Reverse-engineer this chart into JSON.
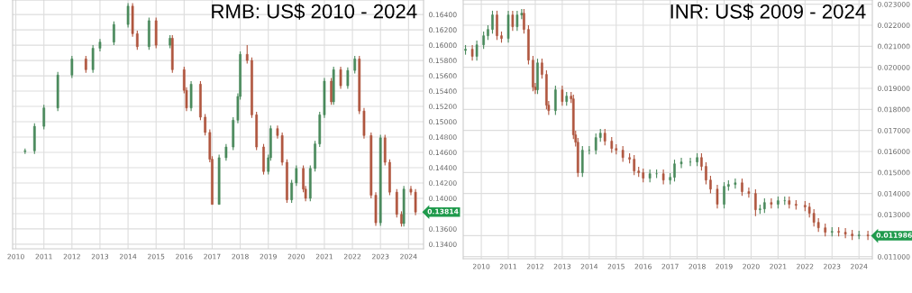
{
  "chart_data": [
    {
      "type": "candlestick",
      "title": "RMB: US$ 2010 - 2024",
      "x": [
        "2010-05",
        "2010-09",
        "2011-01",
        "2011-07",
        "2012-01",
        "2012-07",
        "2012-10",
        "2013-01",
        "2013-07",
        "2014-01",
        "2014-03",
        "2014-05",
        "2014-10",
        "2015-01",
        "2015-07",
        "2015-08",
        "2016-01",
        "2016-02",
        "2016-04",
        "2016-08",
        "2016-10",
        "2016-12",
        "2017-01",
        "2017-04",
        "2017-07",
        "2017-10",
        "2017-12",
        "2018-01",
        "2018-04",
        "2018-06",
        "2018-08",
        "2018-11",
        "2019-01",
        "2019-02",
        "2019-05",
        "2019-07",
        "2019-09",
        "2019-11",
        "2020-01",
        "2020-04",
        "2020-05",
        "2020-07",
        "2020-09",
        "2020-11",
        "2021-01",
        "2021-04",
        "2021-05",
        "2021-08",
        "2021-11",
        "2022-02",
        "2022-04",
        "2022-06",
        "2022-09",
        "2022-11",
        "2023-01",
        "2023-03",
        "2023-05",
        "2023-08",
        "2023-10",
        "2023-11",
        "2024-02",
        "2024-04"
      ],
      "ohlc": [
        [
          0.1461,
          0.1465,
          0.1458,
          0.1462
        ],
        [
          0.1462,
          0.1498,
          0.1458,
          0.1494
        ],
        [
          0.1494,
          0.1522,
          0.149,
          0.1518
        ],
        [
          0.1518,
          0.1565,
          0.1514,
          0.1561
        ],
        [
          0.1561,
          0.1586,
          0.1557,
          0.1582
        ],
        [
          0.1582,
          0.1586,
          0.1564,
          0.1568
        ],
        [
          0.1568,
          0.16,
          0.1564,
          0.1596
        ],
        [
          0.1596,
          0.1608,
          0.1592,
          0.1604
        ],
        [
          0.1604,
          0.1631,
          0.16,
          0.1627
        ],
        [
          0.1627,
          0.1655,
          0.1623,
          0.1651
        ],
        [
          0.1651,
          0.1655,
          0.1611,
          0.1615
        ],
        [
          0.1615,
          0.1619,
          0.1594,
          0.1598
        ],
        [
          0.1598,
          0.1636,
          0.1594,
          0.1632
        ],
        [
          0.1632,
          0.1636,
          0.1596,
          0.16
        ],
        [
          0.16,
          0.1613,
          0.1596,
          0.1609
        ],
        [
          0.1609,
          0.1613,
          0.1564,
          0.1568
        ],
        [
          0.1568,
          0.1572,
          0.1537,
          0.1541
        ],
        [
          0.1541,
          0.1545,
          0.1514,
          0.1518
        ],
        [
          0.1518,
          0.1553,
          0.1514,
          0.1549
        ],
        [
          0.1549,
          0.1553,
          0.1502,
          0.1506
        ],
        [
          0.1506,
          0.151,
          0.1482,
          0.1486
        ],
        [
          0.1486,
          0.149,
          0.1447,
          0.1451
        ],
        [
          0.1451,
          0.1455,
          0.1392,
          0.1392
        ],
        [
          0.1392,
          0.1457,
          0.1392,
          0.1453
        ],
        [
          0.1453,
          0.1471,
          0.1449,
          0.1467
        ],
        [
          0.1467,
          0.1506,
          0.1463,
          0.1502
        ],
        [
          0.1502,
          0.1537,
          0.1498,
          0.1533
        ],
        [
          0.1533,
          0.1592,
          0.1529,
          0.1588
        ],
        [
          0.1588,
          0.16,
          0.1576,
          0.158
        ],
        [
          0.158,
          0.1584,
          0.1505,
          0.1509
        ],
        [
          0.1509,
          0.1513,
          0.1463,
          0.1467
        ],
        [
          0.1467,
          0.1471,
          0.1431,
          0.1435
        ],
        [
          0.1435,
          0.1457,
          0.1431,
          0.1453
        ],
        [
          0.1453,
          0.1495,
          0.1449,
          0.1491
        ],
        [
          0.1491,
          0.1495,
          0.1478,
          0.1482
        ],
        [
          0.1482,
          0.1486,
          0.1443,
          0.1447
        ],
        [
          0.1447,
          0.1451,
          0.1394,
          0.1398
        ],
        [
          0.1398,
          0.1424,
          0.1394,
          0.142
        ],
        [
          0.142,
          0.1443,
          0.1416,
          0.1439
        ],
        [
          0.1439,
          0.1443,
          0.1408,
          0.1412
        ],
        [
          0.1412,
          0.1416,
          0.1396,
          0.14
        ],
        [
          0.14,
          0.1443,
          0.1396,
          0.1439
        ],
        [
          0.1439,
          0.1475,
          0.1435,
          0.1471
        ],
        [
          0.1471,
          0.1513,
          0.1467,
          0.1509
        ],
        [
          0.1509,
          0.1557,
          0.1505,
          0.1553
        ],
        [
          0.1553,
          0.1557,
          0.1522,
          0.1526
        ],
        [
          0.1526,
          0.1572,
          0.1522,
          0.1568
        ],
        [
          0.1568,
          0.1572,
          0.1543,
          0.1547
        ],
        [
          0.1547,
          0.1571,
          0.1543,
          0.1567
        ],
        [
          0.1567,
          0.1586,
          0.1563,
          0.1582
        ],
        [
          0.1582,
          0.1586,
          0.151,
          0.1514
        ],
        [
          0.1514,
          0.1518,
          0.1478,
          0.1482
        ],
        [
          0.1482,
          0.1486,
          0.14,
          0.1404
        ],
        [
          0.1404,
          0.1408,
          0.1364,
          0.1368
        ],
        [
          0.1368,
          0.1483,
          0.1364,
          0.1479
        ],
        [
          0.1479,
          0.1483,
          0.1443,
          0.1447
        ],
        [
          0.1447,
          0.1451,
          0.1404,
          0.1408
        ],
        [
          0.1408,
          0.1412,
          0.1375,
          0.1379
        ],
        [
          0.1379,
          0.1383,
          0.1363,
          0.1367
        ],
        [
          0.1367,
          0.1416,
          0.1363,
          0.1412
        ],
        [
          0.1412,
          0.1416,
          0.1404,
          0.1408
        ],
        [
          0.1408,
          0.1412,
          0.1378,
          0.1382
        ]
      ],
      "colors": [
        "#4a8a5c",
        "#4a8a5c",
        "#4a8a5c",
        "#4a8a5c",
        "#4a8a5c",
        "#b0563f",
        "#4a8a5c",
        "#4a8a5c",
        "#4a8a5c",
        "#4a8a5c",
        "#b0563f",
        "#b0563f",
        "#4a8a5c",
        "#b0563f",
        "#4a8a5c",
        "#b0563f",
        "#b0563f",
        "#b0563f",
        "#4a8a5c",
        "#b0563f",
        "#b0563f",
        "#b0563f",
        "#b0563f",
        "#4a8a5c",
        "#4a8a5c",
        "#4a8a5c",
        "#4a8a5c",
        "#4a8a5c",
        "#b0563f",
        "#b0563f",
        "#b0563f",
        "#b0563f",
        "#4a8a5c",
        "#4a8a5c",
        "#b0563f",
        "#b0563f",
        "#b0563f",
        "#4a8a5c",
        "#4a8a5c",
        "#b0563f",
        "#b0563f",
        "#4a8a5c",
        "#4a8a5c",
        "#4a8a5c",
        "#4a8a5c",
        "#b0563f",
        "#4a8a5c",
        "#b0563f",
        "#4a8a5c",
        "#4a8a5c",
        "#b0563f",
        "#b0563f",
        "#b0563f",
        "#b0563f",
        "#4a8a5c",
        "#b0563f",
        "#b0563f",
        "#b0563f",
        "#b0563f",
        "#4a8a5c",
        "#b0563f",
        "#b0563f"
      ],
      "xlim": [
        "2009-11-20",
        "2024-07-15"
      ],
      "xticks": [
        {
          "value": "2010-01-01",
          "label": "2010"
        },
        {
          "value": "2011-01-01",
          "label": "2011"
        },
        {
          "value": "2012-01-01",
          "label": "2012"
        },
        {
          "value": "2013-01-01",
          "label": "2013"
        },
        {
          "value": "2014-01-01",
          "label": "2014"
        },
        {
          "value": "2015-01-01",
          "label": "2015"
        },
        {
          "value": "2016-01-01",
          "label": "2016"
        },
        {
          "value": "2017-01-01",
          "label": "2017"
        },
        {
          "value": "2018-01-01",
          "label": "2018"
        },
        {
          "value": "2019-01-01",
          "label": "2019"
        },
        {
          "value": "2020-01-01",
          "label": "2020"
        },
        {
          "value": "2021-01-01",
          "label": "2021"
        },
        {
          "value": "2022-01-01",
          "label": "2022"
        },
        {
          "value": "2023-01-01",
          "label": "2023"
        },
        {
          "value": "2024-01-01",
          "label": "2024"
        }
      ],
      "ylim": [
        0.1334,
        0.1659
      ],
      "yticks": [
        {
          "value": 0.134,
          "label": "0.13400"
        },
        {
          "value": 0.136,
          "label": "0.13600"
        },
        {
          "value": 0.138,
          "label": null
        },
        {
          "value": 0.14,
          "label": "0.14000"
        },
        {
          "value": 0.142,
          "label": "0.14200"
        },
        {
          "value": 0.144,
          "label": "0.14400"
        },
        {
          "value": 0.146,
          "label": "0.14600"
        },
        {
          "value": 0.148,
          "label": "0.14800"
        },
        {
          "value": 0.15,
          "label": "0.15000"
        },
        {
          "value": 0.152,
          "label": "0.15200"
        },
        {
          "value": 0.154,
          "label": "0.15400"
        },
        {
          "value": 0.156,
          "label": "0.15600"
        },
        {
          "value": 0.158,
          "label": "0.15800"
        },
        {
          "value": 0.16,
          "label": "0.16000"
        },
        {
          "value": 0.162,
          "label": "0.16200"
        },
        {
          "value": 0.164,
          "label": "0.16400"
        }
      ],
      "annotations": [
        "0.13814"
      ],
      "grid": true
    },
    {
      "type": "candlestick",
      "title": "INR: US$ 2009 - 2024",
      "x": [
        "2009-06",
        "2009-09",
        "2009-11",
        "2010-02",
        "2010-04",
        "2010-06",
        "2010-08",
        "2010-10",
        "2011-01",
        "2011-03",
        "2011-05",
        "2011-07",
        "2011-08",
        "2011-10",
        "2011-12",
        "2012-01",
        "2012-02",
        "2012-04",
        "2012-06",
        "2012-07",
        "2012-10",
        "2013-01",
        "2013-03",
        "2013-05",
        "2013-06",
        "2013-07",
        "2013-08",
        "2013-10",
        "2014-01",
        "2014-04",
        "2014-06",
        "2014-08",
        "2014-11",
        "2015-01",
        "2015-04",
        "2015-07",
        "2015-09",
        "2015-11",
        "2016-01",
        "2016-04",
        "2016-07",
        "2016-10",
        "2017-01",
        "2017-03",
        "2017-06",
        "2017-10",
        "2018-01",
        "2018-03",
        "2018-05",
        "2018-07",
        "2018-10",
        "2019-01",
        "2019-03",
        "2019-06",
        "2019-09",
        "2019-12",
        "2020-03",
        "2020-05",
        "2020-07",
        "2020-10",
        "2021-01",
        "2021-04",
        "2021-06",
        "2021-09",
        "2022-01",
        "2022-03",
        "2022-05",
        "2022-07",
        "2022-10",
        "2023-01",
        "2023-04",
        "2023-07",
        "2023-10",
        "2024-01",
        "2024-05"
      ],
      "ohlc": [
        [
          0.0208,
          0.02106,
          0.0206,
          0.02086
        ],
        [
          0.02086,
          0.02106,
          0.02032,
          0.02052
        ],
        [
          0.02052,
          0.02127,
          0.02032,
          0.02107
        ],
        [
          0.02107,
          0.0217,
          0.02087,
          0.0215
        ],
        [
          0.0215,
          0.022,
          0.0213,
          0.0218
        ],
        [
          0.0218,
          0.02269,
          0.0216,
          0.02249
        ],
        [
          0.02249,
          0.02269,
          0.0213,
          0.0215
        ],
        [
          0.0215,
          0.0217,
          0.02117,
          0.02137
        ],
        [
          0.02137,
          0.02269,
          0.02117,
          0.02249
        ],
        [
          0.02249,
          0.02269,
          0.02173,
          0.02193
        ],
        [
          0.02193,
          0.02269,
          0.02173,
          0.02249
        ],
        [
          0.02249,
          0.02277,
          0.02229,
          0.02257
        ],
        [
          0.02257,
          0.02277,
          0.0216,
          0.0218
        ],
        [
          0.0218,
          0.022,
          0.02014,
          0.02034
        ],
        [
          0.02034,
          0.02054,
          0.01886,
          0.01906
        ],
        [
          0.01906,
          0.01926,
          0.01873,
          0.01893
        ],
        [
          0.01893,
          0.02041,
          0.01873,
          0.02021
        ],
        [
          0.02021,
          0.02041,
          0.01946,
          0.01966
        ],
        [
          0.01966,
          0.01986,
          0.018,
          0.0182
        ],
        [
          0.0182,
          0.0184,
          0.01774,
          0.01794
        ],
        [
          0.01794,
          0.01913,
          0.01774,
          0.01893
        ],
        [
          0.01893,
          0.01913,
          0.01817,
          0.01837
        ],
        [
          0.01837,
          0.01883,
          0.01817,
          0.01863
        ],
        [
          0.01863,
          0.01883,
          0.0183,
          0.0185
        ],
        [
          0.0185,
          0.0187,
          0.01659,
          0.01679
        ],
        [
          0.01679,
          0.01699,
          0.01624,
          0.01644
        ],
        [
          0.01644,
          0.01664,
          0.01479,
          0.01499
        ],
        [
          0.01499,
          0.01626,
          0.01479,
          0.01606
        ],
        [
          0.01606,
          0.01626,
          0.01586,
          0.01606
        ],
        [
          0.01606,
          0.01686,
          0.01586,
          0.01666
        ],
        [
          0.01666,
          0.01707,
          0.01646,
          0.01687
        ],
        [
          0.01687,
          0.01707,
          0.01629,
          0.01649
        ],
        [
          0.01649,
          0.01669,
          0.01594,
          0.01614
        ],
        [
          0.01614,
          0.01634,
          0.01586,
          0.01606
        ],
        [
          0.01606,
          0.01626,
          0.01551,
          0.01571
        ],
        [
          0.01571,
          0.01591,
          0.01543,
          0.01563
        ],
        [
          0.01563,
          0.01583,
          0.01487,
          0.01507
        ],
        [
          0.01507,
          0.01527,
          0.01479,
          0.01499
        ],
        [
          0.01499,
          0.01519,
          0.01453,
          0.01473
        ],
        [
          0.01473,
          0.01514,
          0.01453,
          0.01494
        ],
        [
          0.01494,
          0.01514,
          0.01474,
          0.01494
        ],
        [
          0.01494,
          0.01514,
          0.01444,
          0.01464
        ],
        [
          0.01464,
          0.01497,
          0.01444,
          0.01477
        ],
        [
          0.01477,
          0.01561,
          0.01457,
          0.01541
        ],
        [
          0.01541,
          0.0157,
          0.01521,
          0.0155
        ],
        [
          0.0155,
          0.0157,
          0.0153,
          0.0155
        ],
        [
          0.0155,
          0.01591,
          0.0153,
          0.01571
        ],
        [
          0.01571,
          0.01591,
          0.01509,
          0.01529
        ],
        [
          0.01529,
          0.01549,
          0.01444,
          0.01464
        ],
        [
          0.01464,
          0.01484,
          0.01401,
          0.01421
        ],
        [
          0.01421,
          0.01441,
          0.01329,
          0.01349
        ],
        [
          0.01349,
          0.01454,
          0.01329,
          0.01434
        ],
        [
          0.01434,
          0.01463,
          0.01414,
          0.01443
        ],
        [
          0.01443,
          0.01471,
          0.01423,
          0.01451
        ],
        [
          0.01451,
          0.01471,
          0.01389,
          0.01409
        ],
        [
          0.01409,
          0.01429,
          0.0138,
          0.014
        ],
        [
          0.014,
          0.0142,
          0.01293,
          0.01323
        ],
        [
          0.01323,
          0.01347,
          0.01303,
          0.01327
        ],
        [
          0.01327,
          0.01377,
          0.01307,
          0.01357
        ],
        [
          0.01357,
          0.01377,
          0.01329,
          0.01349
        ],
        [
          0.01349,
          0.01386,
          0.01329,
          0.01366
        ],
        [
          0.01366,
          0.01386,
          0.01346,
          0.01366
        ],
        [
          0.01366,
          0.01386,
          0.01329,
          0.01349
        ],
        [
          0.01349,
          0.01369,
          0.01324,
          0.01344
        ],
        [
          0.01344,
          0.01364,
          0.01316,
          0.01336
        ],
        [
          0.01336,
          0.01356,
          0.01286,
          0.01306
        ],
        [
          0.01306,
          0.01326,
          0.01243,
          0.01263
        ],
        [
          0.01263,
          0.01283,
          0.01217,
          0.01237
        ],
        [
          0.01237,
          0.01257,
          0.01196,
          0.01216
        ],
        [
          0.01216,
          0.0124,
          0.01196,
          0.0122
        ],
        [
          0.0122,
          0.0124,
          0.01196,
          0.01216
        ],
        [
          0.01216,
          0.01236,
          0.01187,
          0.01207
        ],
        [
          0.01207,
          0.01227,
          0.01179,
          0.01199
        ],
        [
          0.01199,
          0.01223,
          0.01183,
          0.01203
        ],
        [
          0.01203,
          0.01223,
          0.01179,
          0.01199
        ]
      ],
      "colors": [
        "#4a8a5c",
        "#b0563f",
        "#4a8a5c",
        "#4a8a5c",
        "#4a8a5c",
        "#4a8a5c",
        "#b0563f",
        "#b0563f",
        "#4a8a5c",
        "#b0563f",
        "#4a8a5c",
        "#4a8a5c",
        "#b0563f",
        "#b0563f",
        "#b0563f",
        "#b0563f",
        "#4a8a5c",
        "#b0563f",
        "#b0563f",
        "#b0563f",
        "#4a8a5c",
        "#b0563f",
        "#4a8a5c",
        "#b0563f",
        "#b0563f",
        "#b0563f",
        "#b0563f",
        "#4a8a5c",
        "#4a8a5c",
        "#4a8a5c",
        "#4a8a5c",
        "#b0563f",
        "#b0563f",
        "#b0563f",
        "#b0563f",
        "#b0563f",
        "#b0563f",
        "#b0563f",
        "#b0563f",
        "#4a8a5c",
        "#4a8a5c",
        "#b0563f",
        "#4a8a5c",
        "#4a8a5c",
        "#4a8a5c",
        "#4a8a5c",
        "#4a8a5c",
        "#b0563f",
        "#b0563f",
        "#b0563f",
        "#b0563f",
        "#4a8a5c",
        "#4a8a5c",
        "#4a8a5c",
        "#b0563f",
        "#b0563f",
        "#b0563f",
        "#4a8a5c",
        "#4a8a5c",
        "#b0563f",
        "#4a8a5c",
        "#4a8a5c",
        "#b0563f",
        "#b0563f",
        "#b0563f",
        "#b0563f",
        "#b0563f",
        "#b0563f",
        "#b0563f",
        "#4a8a5c",
        "#b0563f",
        "#b0563f",
        "#b0563f",
        "#4a8a5c",
        "#b0563f"
      ],
      "xlim": [
        "2009-05-01",
        "2024-06-30"
      ],
      "xticks": [
        {
          "value": "2010-01-01",
          "label": "2010"
        },
        {
          "value": "2011-01-01",
          "label": "2011"
        },
        {
          "value": "2012-01-01",
          "label": "2012"
        },
        {
          "value": "2013-01-01",
          "label": "2013"
        },
        {
          "value": "2014-01-01",
          "label": "2014"
        },
        {
          "value": "2015-01-01",
          "label": "2015"
        },
        {
          "value": "2016-01-01",
          "label": "2016"
        },
        {
          "value": "2017-01-01",
          "label": "2017"
        },
        {
          "value": "2018-01-01",
          "label": "2018"
        },
        {
          "value": "2019-01-01",
          "label": "2019"
        },
        {
          "value": "2020-01-01",
          "label": "2020"
        },
        {
          "value": "2021-01-01",
          "label": "2021"
        },
        {
          "value": "2022-01-01",
          "label": "2022"
        },
        {
          "value": "2023-01-01",
          "label": "2023"
        },
        {
          "value": "2024-01-01",
          "label": "2024"
        }
      ],
      "ylim": [
        0.0109,
        0.0232
      ],
      "yticks": [
        {
          "value": 0.011,
          "label": "0.011000"
        },
        {
          "value": 0.012,
          "label": null
        },
        {
          "value": 0.013,
          "label": "0.013000"
        },
        {
          "value": 0.014,
          "label": "0.014000"
        },
        {
          "value": 0.015,
          "label": "0.015000"
        },
        {
          "value": 0.016,
          "label": "0.016000"
        },
        {
          "value": 0.017,
          "label": "0.017000"
        },
        {
          "value": 0.018,
          "label": "0.018000"
        },
        {
          "value": 0.019,
          "label": "0.019000"
        },
        {
          "value": 0.02,
          "label": "0.020000"
        },
        {
          "value": 0.021,
          "label": "0.021000"
        },
        {
          "value": 0.022,
          "label": "0.022000"
        },
        {
          "value": 0.023,
          "label": "0.023000"
        }
      ],
      "annotations": [
        "0.011986"
      ],
      "grid": true
    }
  ]
}
